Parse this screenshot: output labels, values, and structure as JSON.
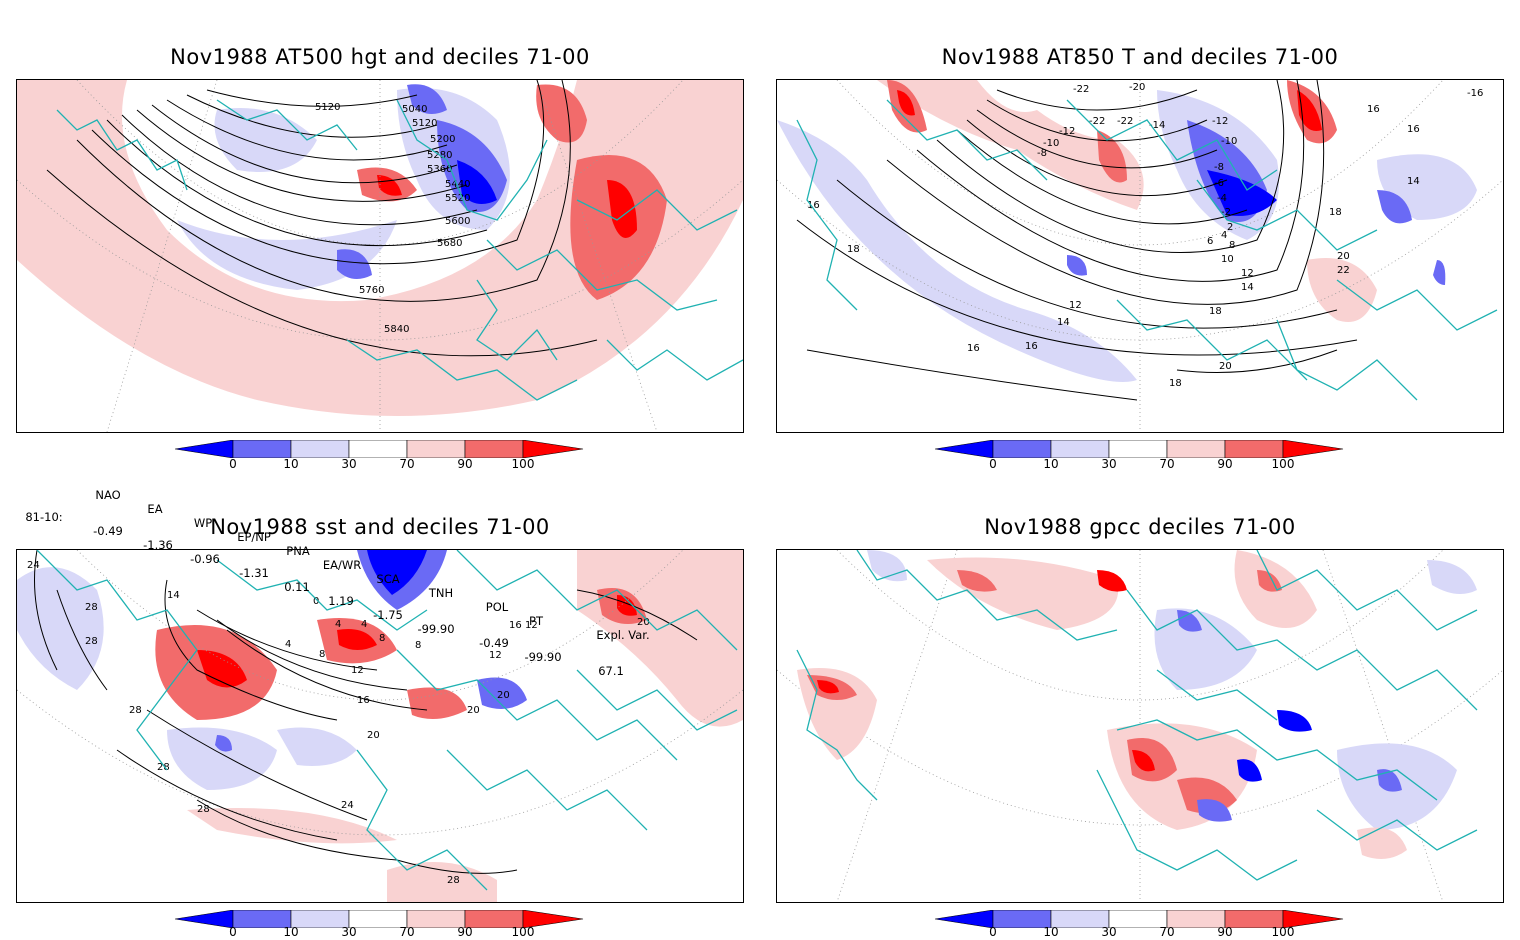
{
  "panels": [
    {
      "title": "Nov1988 AT500 hgt and deciles 71-00",
      "contour_labels": [
        "5040",
        "5120",
        "5120",
        "5200",
        "5280",
        "5360",
        "5440",
        "5520",
        "5600",
        "5680",
        "5760",
        "5840"
      ]
    },
    {
      "title": "Nov1988 AT850 T and deciles 71-00",
      "contour_labels": [
        "-22",
        "-20",
        "-22",
        "-22",
        "-14",
        "-12",
        "-12",
        "-10",
        "-10",
        "-8",
        "-8",
        "-6",
        "-4",
        "-2",
        "2",
        "4",
        "6",
        "8",
        "10",
        "12",
        "14",
        "16",
        "16",
        "16",
        "16",
        "16",
        "18",
        "18",
        "18",
        "18",
        "20",
        "20",
        "22",
        "12",
        "14",
        "14",
        "-16"
      ]
    },
    {
      "title": "Nov1988 sst and deciles 71-00",
      "contour_labels": [
        "24",
        "28",
        "28",
        "28",
        "14",
        "0",
        "4",
        "4",
        "4",
        "8",
        "8",
        "12",
        "16",
        "20",
        "20",
        "20",
        "24",
        "28",
        "28",
        "28",
        "8",
        "12",
        "16",
        "12",
        "20"
      ]
    },
    {
      "title": "Nov1988 gpcc deciles 71-00",
      "contour_labels": []
    }
  ],
  "colorbar": {
    "labels": [
      "0",
      "10",
      "30",
      "70",
      "90",
      "100"
    ],
    "colors": {
      "deep_blue": "#0000ff",
      "mid_blue": "#6a6af5",
      "light_blue": "#d8d8f8",
      "white": "#ffffff",
      "light_red": "#f9d2d2",
      "mid_red": "#f26b6b",
      "deep_red": "#ff0000"
    }
  },
  "indices": {
    "headers": [
      "NAO",
      "EA",
      "WP",
      "EP/NP",
      "PNA",
      "EA/WR",
      "SCA",
      "TNH",
      "POL",
      "PT",
      "Expl. Var."
    ],
    "row_label": "81-10:",
    "values": [
      "-0.49",
      "-1.36",
      "-0.96",
      "-1.31",
      "0.11",
      "1.19",
      "-1.75",
      "-99.90",
      "-0.49",
      "-99.90",
      "67.1"
    ]
  },
  "map_colors": {
    "coast": "#20b2b2",
    "contour": "#000000",
    "grid": "#999999"
  }
}
